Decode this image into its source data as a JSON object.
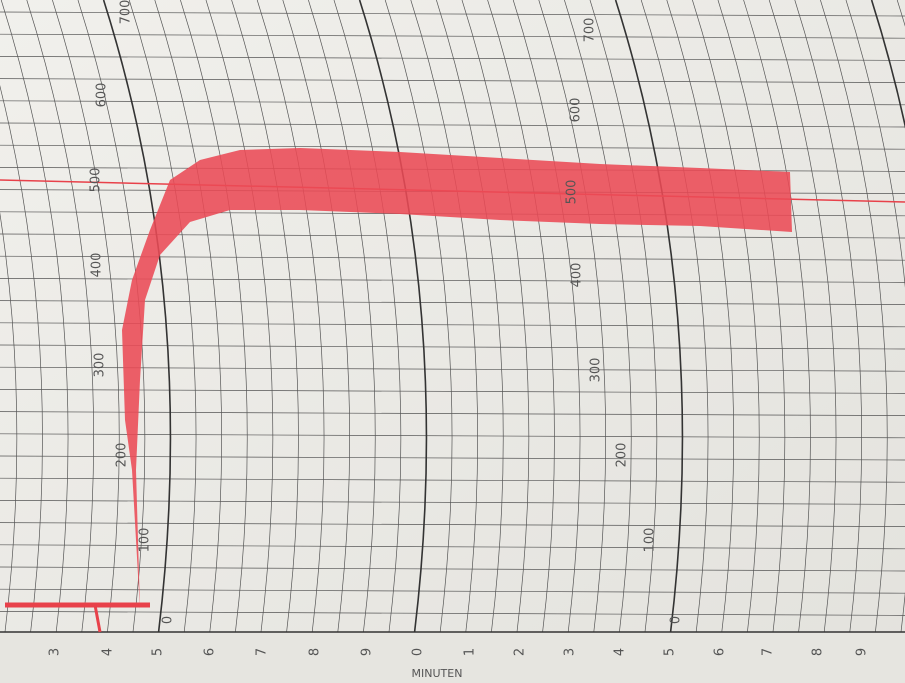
{
  "bottom_labels": [
    "3",
    "4",
    "5",
    "6",
    "7",
    "8",
    "9",
    "0",
    "1",
    "2",
    "3",
    "4",
    "5",
    "6",
    "7",
    "8",
    "9"
  ],
  "axis_title": "MINUTEN",
  "left_scale": [
    "0",
    "100",
    "200",
    "300",
    "400",
    "500",
    "600",
    "700"
  ],
  "right_scale": [
    "0",
    "100",
    "200",
    "300",
    "400",
    "500",
    "600",
    "700"
  ]
}
